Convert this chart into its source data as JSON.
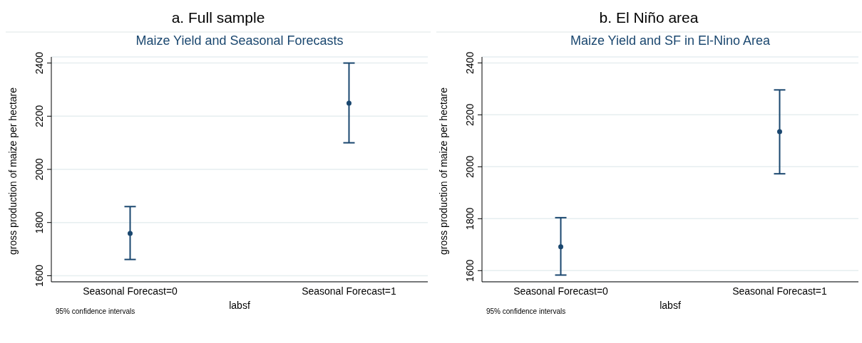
{
  "chart_data": [
    {
      "type": "scatter",
      "title": "a. Full sample",
      "subtitle": "Maize Yield and Seasonal Forecasts",
      "xlabel": "labsf",
      "ylabel": "gross production of maize per hectare",
      "categories": [
        "Seasonal Forecast=0",
        "Seasonal Forecast=1"
      ],
      "series": [
        {
          "color": "#1a476f",
          "values": [
            1759,
            2249
          ],
          "errors": [
            [
              1661,
              1860
            ],
            [
              2100,
              2400
            ]
          ]
        }
      ],
      "ylim": [
        1577,
        2423
      ],
      "yticks": [
        1600,
        1800,
        2000,
        2200,
        2400
      ],
      "grid": "y",
      "marker": "circle",
      "annotations": [
        "95% confidence intervals"
      ]
    },
    {
      "type": "scatter",
      "title": "b. El Niño area",
      "subtitle": "Maize Yield and SF in El-Nino Area",
      "xlabel": "labsf",
      "ylabel": "gross production of maize per hectare",
      "categories": [
        "Seasonal Forecast=0",
        "Seasonal Forecast=1"
      ],
      "series": [
        {
          "color": "#1a476f",
          "values": [
            1692,
            2135
          ],
          "errors": [
            [
              1583,
              1804
            ],
            [
              1973,
              2296
            ]
          ]
        }
      ],
      "ylim": [
        1557,
        2423
      ],
      "yticks": [
        1600,
        1800,
        2000,
        2200,
        2400
      ],
      "grid": "y",
      "marker": "circle",
      "annotations": [
        "95% confidence intervals"
      ]
    }
  ]
}
